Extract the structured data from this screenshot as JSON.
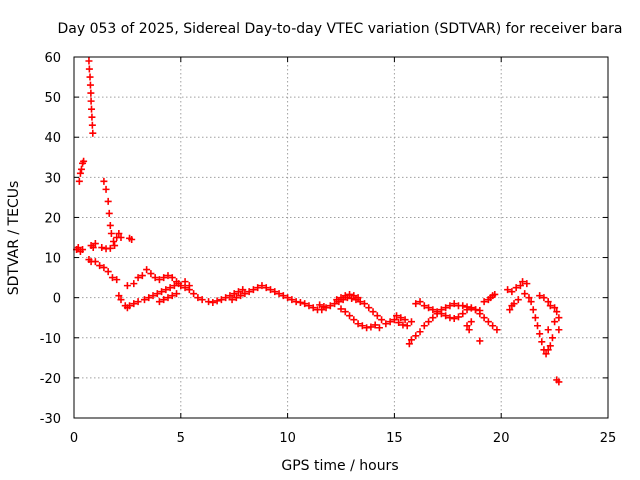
{
  "chart_data": {
    "type": "scatter",
    "title": "Day 053 of 2025, Sidereal Day-to-day VTEC variation (SDTVAR) for receiver bara",
    "xlabel": "GPS time / hours",
    "ylabel": "SDTVAR / TECUs",
    "xlim": [
      0,
      25
    ],
    "ylim": [
      -30,
      60
    ],
    "x_ticks": [
      "0",
      "5",
      "10",
      "15",
      "20",
      "25"
    ],
    "y_ticks": [
      "-30",
      "-20",
      "-10",
      "0",
      "10",
      "20",
      "30",
      "40",
      "50",
      "60"
    ],
    "grid": true,
    "marker": "+",
    "series_color": "#ff0000",
    "series": [
      {
        "name": "SDTVAR",
        "points": [
          [
            0.7,
            59
          ],
          [
            0.72,
            57
          ],
          [
            0.75,
            55
          ],
          [
            0.77,
            53
          ],
          [
            0.79,
            51
          ],
          [
            0.8,
            49
          ],
          [
            0.82,
            47
          ],
          [
            0.84,
            45
          ],
          [
            0.86,
            43
          ],
          [
            0.88,
            41
          ],
          [
            0.12,
            12
          ],
          [
            0.2,
            12.5
          ],
          [
            0.3,
            11.5
          ],
          [
            0.4,
            12
          ],
          [
            0.25,
            29
          ],
          [
            0.3,
            31
          ],
          [
            0.35,
            32
          ],
          [
            0.4,
            33.5
          ],
          [
            0.45,
            34
          ],
          [
            0.8,
            13
          ],
          [
            0.9,
            12.5
          ],
          [
            1.0,
            13.5
          ],
          [
            1.3,
            12.5
          ],
          [
            1.5,
            12.2
          ],
          [
            1.7,
            12.3
          ],
          [
            0.7,
            9.5
          ],
          [
            0.8,
            9
          ],
          [
            1.0,
            9
          ],
          [
            1.2,
            8
          ],
          [
            1.4,
            7.5
          ],
          [
            1.6,
            6.5
          ],
          [
            1.8,
            5
          ],
          [
            2.0,
            4.5
          ],
          [
            1.4,
            29
          ],
          [
            1.5,
            27
          ],
          [
            1.6,
            24
          ],
          [
            1.65,
            21
          ],
          [
            1.7,
            18
          ],
          [
            1.75,
            16
          ],
          [
            1.85,
            14
          ],
          [
            1.9,
            13
          ],
          [
            2.0,
            15
          ],
          [
            2.1,
            16
          ],
          [
            2.2,
            15
          ],
          [
            2.6,
            14.8
          ],
          [
            2.7,
            14.5
          ],
          [
            2.1,
            0.5
          ],
          [
            2.2,
            -0.5
          ],
          [
            2.4,
            -2
          ],
          [
            2.5,
            -2.5
          ],
          [
            2.6,
            -2
          ],
          [
            2.8,
            -1.5
          ],
          [
            3.0,
            -1
          ],
          [
            2.5,
            3
          ],
          [
            2.8,
            3.5
          ],
          [
            3.0,
            5
          ],
          [
            3.2,
            5.5
          ],
          [
            3.4,
            7
          ],
          [
            3.6,
            6
          ],
          [
            3.8,
            5
          ],
          [
            4.0,
            4.5
          ],
          [
            4.2,
            5
          ],
          [
            4.4,
            5.5
          ],
          [
            4.6,
            5
          ],
          [
            4.8,
            4
          ],
          [
            3.3,
            -0.5
          ],
          [
            3.5,
            0
          ],
          [
            3.7,
            0.5
          ],
          [
            3.9,
            1
          ],
          [
            4.1,
            1.5
          ],
          [
            4.3,
            2
          ],
          [
            4.5,
            2.5
          ],
          [
            4.7,
            3
          ],
          [
            4.9,
            3.5
          ],
          [
            5.0,
            3
          ],
          [
            5.2,
            2.5
          ],
          [
            5.4,
            2
          ],
          [
            5.6,
            1
          ],
          [
            5.8,
            0
          ],
          [
            6.0,
            -0.5
          ],
          [
            5.2,
            4
          ],
          [
            5.4,
            3
          ],
          [
            4.0,
            -1
          ],
          [
            4.2,
            -0.5
          ],
          [
            4.4,
            0
          ],
          [
            4.6,
            0.5
          ],
          [
            4.8,
            1
          ],
          [
            6.3,
            -1
          ],
          [
            6.5,
            -1.2
          ],
          [
            6.7,
            -0.8
          ],
          [
            6.9,
            -0.5
          ],
          [
            7.1,
            0
          ],
          [
            7.3,
            0.5
          ],
          [
            7.5,
            1
          ],
          [
            7.7,
            1.5
          ],
          [
            7.9,
            2
          ],
          [
            7.4,
            -0.5
          ],
          [
            7.6,
            0
          ],
          [
            7.8,
            0.5
          ],
          [
            8.0,
            1
          ],
          [
            8.2,
            1.5
          ],
          [
            8.4,
            2
          ],
          [
            8.6,
            2.5
          ],
          [
            8.8,
            3
          ],
          [
            9.0,
            2.5
          ],
          [
            9.2,
            2
          ],
          [
            9.4,
            1.5
          ],
          [
            9.6,
            1
          ],
          [
            9.8,
            0.5
          ],
          [
            10.0,
            0
          ],
          [
            10.2,
            -0.5
          ],
          [
            10.4,
            -1
          ],
          [
            10.6,
            -1.2
          ],
          [
            10.8,
            -1.5
          ],
          [
            11.0,
            -2
          ],
          [
            11.2,
            -2.5
          ],
          [
            11.4,
            -3
          ],
          [
            11.6,
            -3
          ],
          [
            11.8,
            -2.5
          ],
          [
            12.0,
            -2
          ],
          [
            12.2,
            -1.5
          ],
          [
            12.4,
            -1
          ],
          [
            12.6,
            -0.5
          ],
          [
            12.8,
            0
          ],
          [
            13.0,
            -0.2
          ],
          [
            13.2,
            -0.5
          ],
          [
            13.4,
            -1
          ],
          [
            13.6,
            -1.5
          ],
          [
            13.8,
            -2.5
          ],
          [
            14.0,
            -3.5
          ],
          [
            14.2,
            -4.5
          ],
          [
            14.4,
            -5.5
          ],
          [
            11.5,
            -1.8
          ],
          [
            11.7,
            -2.2
          ],
          [
            12.5,
            -2.8
          ],
          [
            12.7,
            -3.5
          ],
          [
            12.9,
            -4.5
          ],
          [
            13.1,
            -5.5
          ],
          [
            13.3,
            -6.5
          ],
          [
            13.5,
            -7
          ],
          [
            13.7,
            -7.5
          ],
          [
            13.9,
            -7.3
          ],
          [
            14.1,
            -6.8
          ],
          [
            14.3,
            -7.5
          ],
          [
            12.3,
            -0.5
          ],
          [
            12.5,
            0
          ],
          [
            12.7,
            0.5
          ],
          [
            12.9,
            0.8
          ],
          [
            13.1,
            0.5
          ],
          [
            13.3,
            0
          ],
          [
            14.6,
            -6.5
          ],
          [
            14.8,
            -6
          ],
          [
            15.0,
            -5.5
          ],
          [
            15.2,
            -6.2
          ],
          [
            15.4,
            -6.8
          ],
          [
            15.6,
            -7
          ],
          [
            15.8,
            -6
          ],
          [
            15.1,
            -4.5
          ],
          [
            15.3,
            -5
          ],
          [
            15.5,
            -5.5
          ],
          [
            15.7,
            -11.5
          ],
          [
            15.8,
            -10.5
          ],
          [
            16.0,
            -9.5
          ],
          [
            16.2,
            -8.5
          ],
          [
            16.4,
            -7
          ],
          [
            16.6,
            -6
          ],
          [
            16.8,
            -5
          ],
          [
            17.0,
            -4
          ],
          [
            17.2,
            -3
          ],
          [
            17.4,
            -2.5
          ],
          [
            17.6,
            -2
          ],
          [
            17.8,
            -1.5
          ],
          [
            18.0,
            -2
          ],
          [
            16.0,
            -1.5
          ],
          [
            16.2,
            -1
          ],
          [
            16.4,
            -2
          ],
          [
            16.6,
            -2.5
          ],
          [
            16.8,
            -3
          ],
          [
            17.0,
            -3.5
          ],
          [
            17.2,
            -4
          ],
          [
            17.4,
            -4.5
          ],
          [
            17.6,
            -5
          ],
          [
            17.8,
            -5.2
          ],
          [
            18.0,
            -4.8
          ],
          [
            18.2,
            -4
          ],
          [
            18.4,
            -3
          ],
          [
            18.6,
            -2.5
          ],
          [
            18.8,
            -3
          ],
          [
            19.0,
            -4
          ],
          [
            19.2,
            -5
          ],
          [
            19.4,
            -6
          ],
          [
            19.6,
            -7
          ],
          [
            19.8,
            -8
          ],
          [
            18.4,
            -7
          ],
          [
            18.5,
            -8
          ],
          [
            18.6,
            -6
          ],
          [
            19.0,
            -10.8
          ],
          [
            19.2,
            -1
          ],
          [
            19.4,
            -0.5
          ],
          [
            19.5,
            0
          ],
          [
            19.6,
            0.5
          ],
          [
            19.7,
            0.8
          ],
          [
            18.2,
            -2
          ],
          [
            18.4,
            -2.3
          ],
          [
            18.6,
            -2.6
          ],
          [
            18.8,
            -3
          ],
          [
            19.0,
            -3.2
          ],
          [
            20.3,
            2
          ],
          [
            20.5,
            1.5
          ],
          [
            20.7,
            2.5
          ],
          [
            20.9,
            3
          ],
          [
            21.0,
            4
          ],
          [
            21.2,
            3.5
          ],
          [
            21.1,
            1
          ],
          [
            21.3,
            0
          ],
          [
            21.4,
            -1
          ],
          [
            20.4,
            -3
          ],
          [
            20.5,
            -2
          ],
          [
            20.6,
            -1.5
          ],
          [
            20.8,
            -0.5
          ],
          [
            21.5,
            -3
          ],
          [
            21.6,
            -5
          ],
          [
            21.7,
            -7
          ],
          [
            21.8,
            -9
          ],
          [
            21.9,
            -11
          ],
          [
            22.0,
            -13
          ],
          [
            22.1,
            -14
          ],
          [
            22.2,
            -13
          ],
          [
            22.3,
            -12
          ],
          [
            22.2,
            -8
          ],
          [
            22.4,
            -10
          ],
          [
            22.5,
            -6
          ],
          [
            21.8,
            0.5
          ],
          [
            22.0,
            0
          ],
          [
            22.2,
            -1
          ],
          [
            22.3,
            -2
          ],
          [
            22.5,
            -2.5
          ],
          [
            22.6,
            -3.5
          ],
          [
            22.7,
            -5
          ],
          [
            22.7,
            -8
          ],
          [
            22.6,
            -20.5
          ],
          [
            22.7,
            -21
          ]
        ]
      }
    ]
  }
}
